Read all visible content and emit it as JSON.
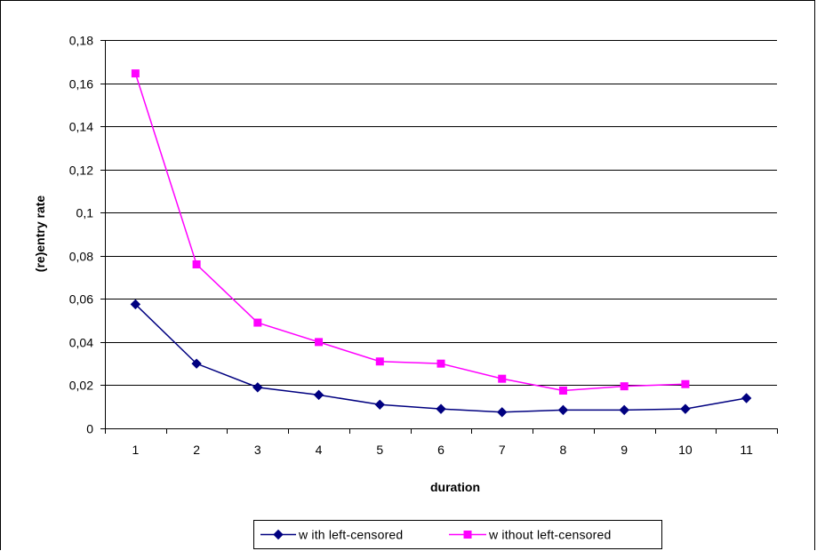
{
  "chart_data": {
    "type": "line",
    "title": "",
    "xlabel": "duration",
    "ylabel": "(re)entry rate",
    "categories": [
      "1",
      "2",
      "3",
      "4",
      "5",
      "6",
      "7",
      "8",
      "9",
      "10",
      "11"
    ],
    "ylim": [
      0,
      0.18
    ],
    "yticks": [
      "0",
      "0,02",
      "0,04",
      "0,06",
      "0,08",
      "0,1",
      "0,12",
      "0,14",
      "0,16",
      "0,18"
    ],
    "grid": true,
    "legend_position": "bottom",
    "series": [
      {
        "name": "w ith left-censored",
        "color": "#000080",
        "marker": "diamond",
        "values": [
          0.0575,
          0.03,
          0.019,
          0.0155,
          0.011,
          0.009,
          0.0075,
          0.0085,
          0.0085,
          0.009,
          0.014
        ]
      },
      {
        "name": "w ithout left-censored",
        "color": "#FF00FF",
        "marker": "square",
        "values": [
          0.1645,
          0.076,
          0.049,
          0.04,
          0.031,
          0.03,
          0.023,
          0.0175,
          0.0195,
          0.0205,
          null
        ]
      }
    ]
  }
}
